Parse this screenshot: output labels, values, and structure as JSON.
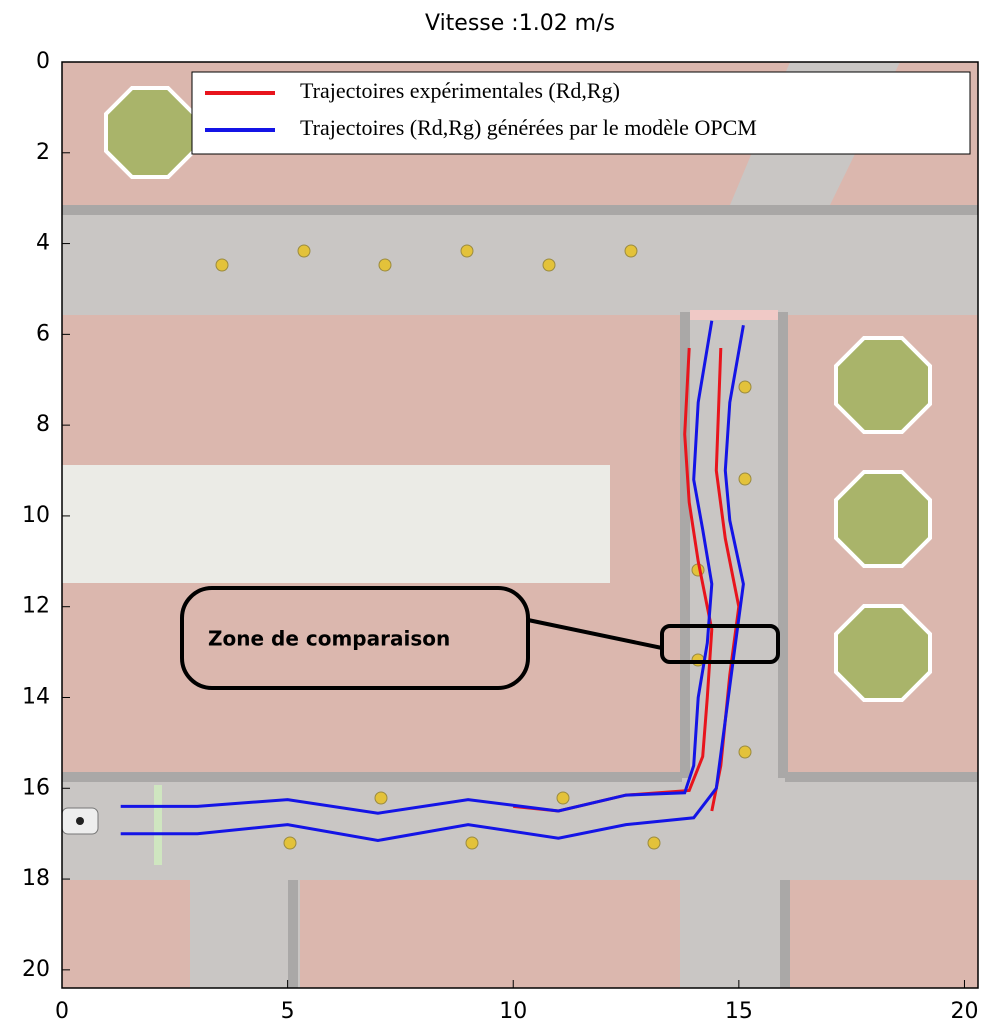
{
  "chart_data": {
    "type": "line",
    "title": "Vitesse :1.02 m/s",
    "xlim": [
      0,
      20.3
    ],
    "ylim": [
      0,
      20.4
    ],
    "y_reversed": true,
    "xticks": [
      0,
      5,
      10,
      15,
      20
    ],
    "yticks": [
      0,
      2,
      4,
      6,
      8,
      10,
      12,
      14,
      16,
      18,
      20
    ],
    "legend": "upper right",
    "annotation": "Zone de comparaison",
    "series": [
      {
        "name": "Trajectoires expérimentales (Rd,Rg)",
        "color": "#e8141c",
        "lines": [
          {
            "x": [
              10,
              11,
              12.5,
              13.9,
              14.2,
              14.3,
              14.4,
              14.1,
              13.9,
              13.8,
              13.9
            ],
            "y": [
              16.4,
              16.5,
              16.15,
              16.05,
              15.3,
              14,
              12.5,
              11,
              9.7,
              8.2,
              6.3
            ]
          },
          {
            "x": [
              14.4,
              14.6,
              14.8,
              15.0,
              14.7,
              14.5,
              14.6
            ],
            "y": [
              16.5,
              15.5,
              13.5,
              12.0,
              10.5,
              9,
              6.3
            ]
          }
        ]
      },
      {
        "name": "Trajectoires (Rd,Rg) générées par le modèle OPCM",
        "color": "#1414e6",
        "lines": [
          {
            "x": [
              1.3,
              3,
              5,
              7,
              9,
              11,
              12.5,
              13.8,
              14.0,
              14.1,
              14.3,
              14.4,
              14.2,
              14.0,
              14.1,
              14.4
            ],
            "y": [
              16.4,
              16.4,
              16.25,
              16.55,
              16.25,
              16.5,
              16.15,
              16.1,
              15.5,
              14,
              12.8,
              11.5,
              10.3,
              9.2,
              7.5,
              5.7
            ]
          },
          {
            "x": [
              1.3,
              3,
              5,
              7,
              9,
              11,
              12.5,
              14.0,
              14.5,
              14.7,
              14.9,
              15.1,
              14.8,
              14.7,
              14.8,
              15.1
            ],
            "y": [
              17.0,
              17.0,
              16.8,
              17.15,
              16.8,
              17.1,
              16.8,
              16.65,
              16.0,
              14.5,
              13.0,
              11.5,
              10.1,
              9.0,
              7.5,
              5.8
            ]
          }
        ]
      }
    ]
  }
}
